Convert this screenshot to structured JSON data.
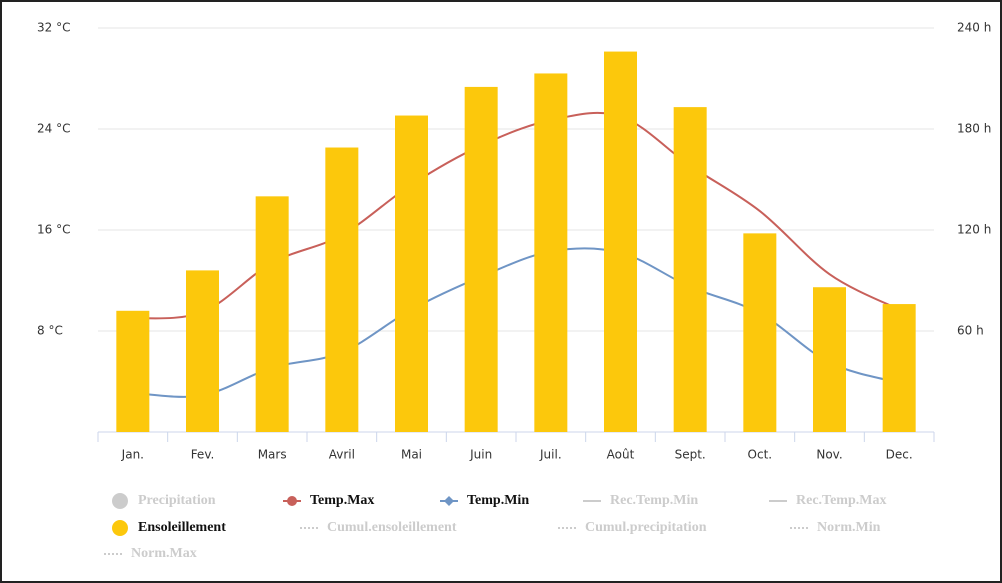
{
  "chart_data": {
    "type": "combo",
    "categories": [
      "Jan.",
      "Fev.",
      "Mars",
      "Avril",
      "Mai",
      "Juin",
      "Juil.",
      "Août",
      "Sept.",
      "Oct.",
      "Nov.",
      "Dec."
    ],
    "ylim": [
      0,
      32
    ],
    "yticks": [
      {
        "value": 8,
        "label": "8 °C"
      },
      {
        "value": 16,
        "label": "16 °C"
      },
      {
        "value": 24,
        "label": "24 °C"
      },
      {
        "value": 32,
        "label": "32 °C"
      }
    ],
    "y2lim": [
      0,
      240
    ],
    "y2ticks": [
      {
        "value": 60,
        "label": "60 h"
      },
      {
        "value": 120,
        "label": "120 h"
      },
      {
        "value": 180,
        "label": "180 h"
      },
      {
        "value": 240,
        "label": "240 h"
      }
    ],
    "grid": true,
    "legend": "bottom",
    "series": [
      {
        "name": "Precipitation",
        "symbol": "circle",
        "visible": false
      },
      {
        "name": "Temp.Max",
        "type": "line",
        "symbol": "line-circle",
        "visible": true,
        "color": "#c8605a",
        "values": [
          9,
          9.5,
          13.4,
          15.6,
          19.6,
          22.7,
          24.7,
          25,
          21.1,
          17.5,
          12.5,
          9.7
        ]
      },
      {
        "name": "Temp.Min",
        "type": "line",
        "symbol": "line-diamond",
        "visible": true,
        "color": "#6f95c5",
        "values": [
          3.1,
          2.9,
          5.1,
          6.3,
          9.7,
          12.3,
          14.3,
          14.2,
          11.5,
          9.4,
          5.5,
          3.9
        ]
      },
      {
        "name": "Rec.Temp.Min",
        "symbol": "line",
        "visible": false
      },
      {
        "name": "Rec.Temp.Max",
        "symbol": "line",
        "visible": false
      },
      {
        "name": "Ensoleillement",
        "type": "bar",
        "axis": "y2",
        "symbol": "circle",
        "visible": true,
        "color": "#fcc80c",
        "values": [
          72,
          96,
          140,
          169,
          188,
          205,
          213,
          226,
          193,
          118,
          86,
          76
        ]
      },
      {
        "name": "Cumul.ensoleillement",
        "symbol": "dotted",
        "visible": false
      },
      {
        "name": "Cumul.precipitation",
        "symbol": "dotted",
        "visible": false
      },
      {
        "name": "Norm.Min",
        "symbol": "dotted",
        "visible": false
      },
      {
        "name": "Norm.Max",
        "symbol": "dotted",
        "visible": false
      }
    ]
  }
}
